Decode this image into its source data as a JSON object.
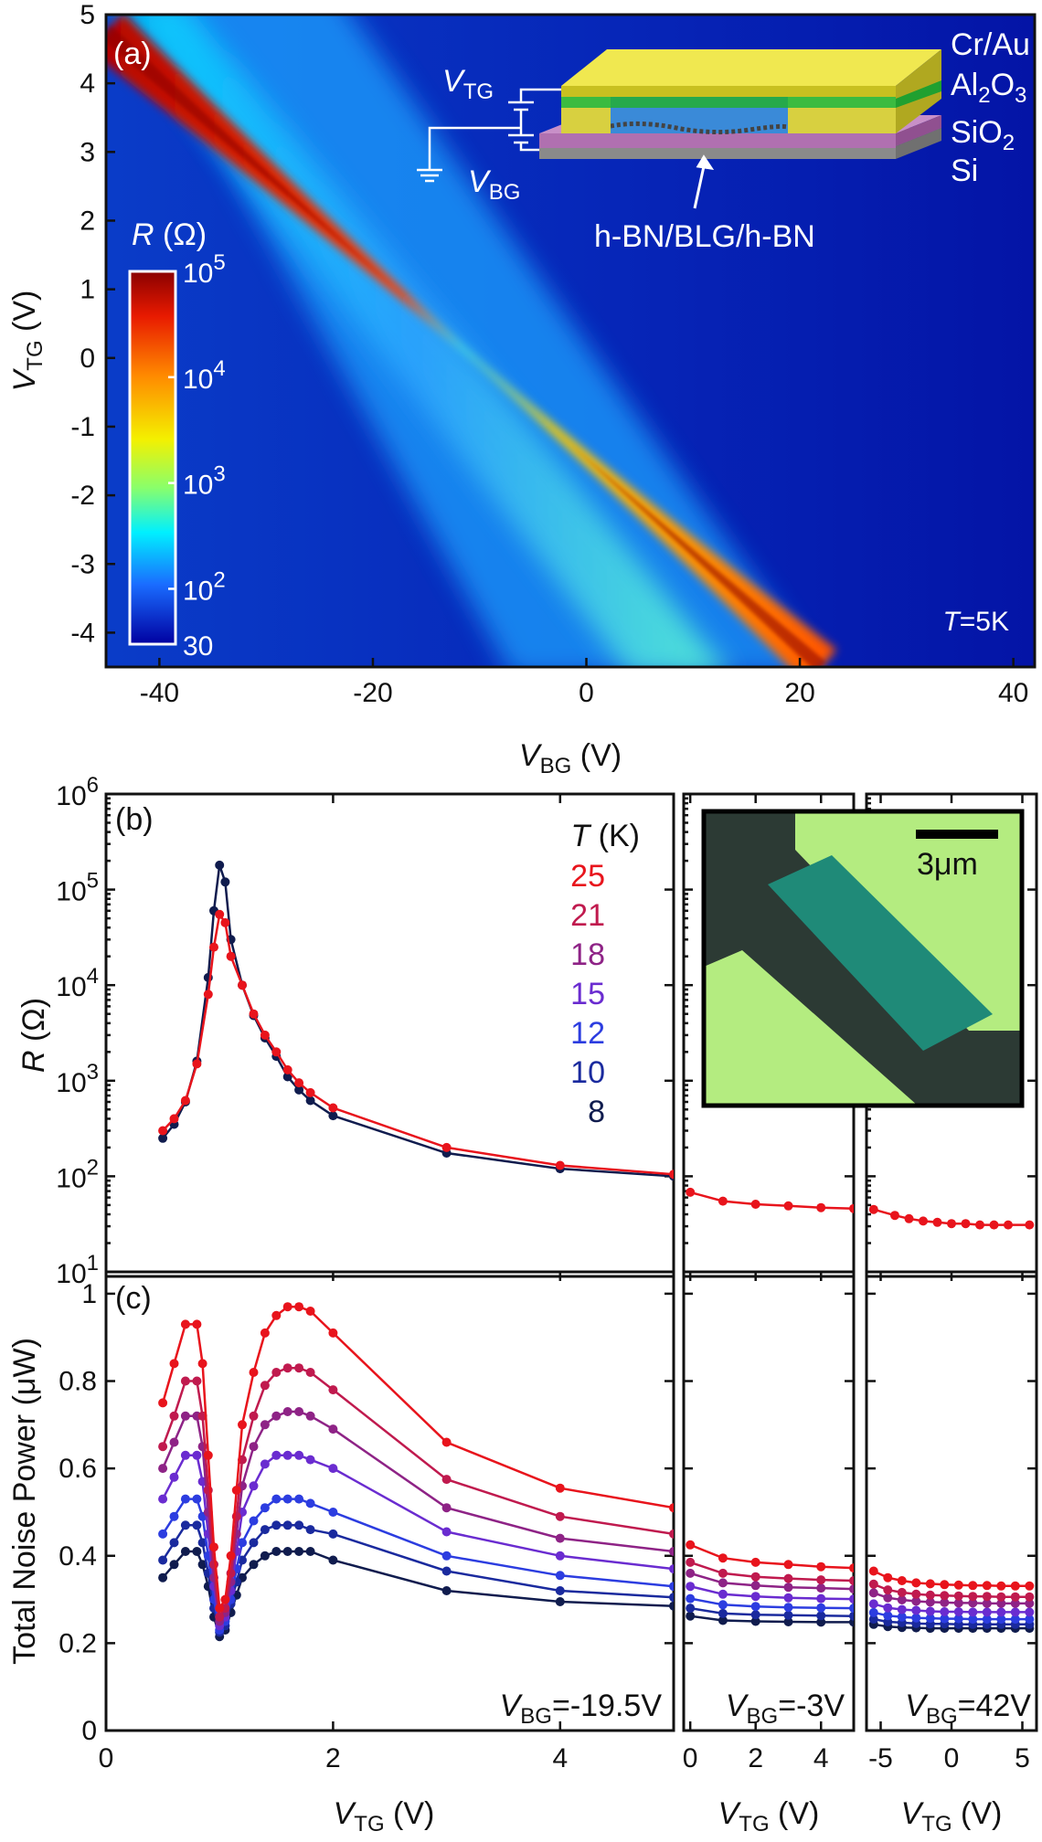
{
  "chart_data": [
    {
      "panel": "(a)",
      "type": "heatmap",
      "xlabel": "V_BG (V)",
      "ylabel": "V_TG (V)",
      "xlim": [
        -45,
        42
      ],
      "ylim": [
        -4.5,
        5
      ],
      "xticks": [
        -40,
        -20,
        0,
        20,
        40
      ],
      "yticks": [
        -4,
        -3,
        -2,
        -1,
        0,
        1,
        2,
        3,
        4,
        5
      ],
      "ridge_line": {
        "x": [
          -45,
          22
        ],
        "y": [
          4.75,
          -4.5
        ]
      },
      "colorbar": {
        "title": "R (Ω)",
        "scale": "log",
        "range": [
          30,
          100000
        ],
        "tick_labels": [
          "10^5",
          "10^4",
          "10^3",
          "10^2",
          "30"
        ],
        "tick_values": [
          100000,
          10000,
          1000,
          100,
          30
        ]
      },
      "annotations": [
        "T=5K"
      ],
      "inset_labels": [
        "V_TG",
        "V_BG",
        "Cr/Au",
        "Al2O3",
        "SiO2",
        "Si",
        "h-BN/BLG/h-BN"
      ]
    },
    {
      "panel": "(b)",
      "type": "line",
      "ylabel": "R (Ω)",
      "yscale": "log",
      "ylim": [
        10,
        1000000
      ],
      "yticks": [
        10,
        100,
        1000,
        10000,
        100000,
        1000000
      ],
      "legend_title": "T (K)",
      "temperatures": [
        25,
        21,
        18,
        15,
        12,
        10,
        8
      ],
      "subpanels": [
        {
          "vbg": "V_BG=-19.5V",
          "xlim": [
            0,
            5
          ],
          "x": [
            0.5,
            0.6,
            0.7,
            0.8,
            0.9,
            0.95,
            1.0,
            1.05,
            1.1,
            1.2,
            1.3,
            1.4,
            1.5,
            1.6,
            1.7,
            1.8,
            2.0,
            3.0,
            4.0,
            5.0
          ],
          "series": [
            {
              "T": 25,
              "values": [
                300,
                400,
                620,
                1500,
                8000,
                25000,
                55000,
                45000,
                20000,
                10000,
                5000,
                3000,
                2000,
                1300,
                950,
                750,
                520,
                200,
                130,
                105
              ]
            },
            {
              "T": 8,
              "values": [
                250,
                350,
                600,
                1600,
                12000,
                60000,
                180000,
                120000,
                30000,
                10000,
                4800,
                2800,
                1800,
                1100,
                800,
                620,
                430,
                175,
                120,
                100
              ]
            }
          ]
        },
        {
          "vbg": "V_BG=-3V",
          "xlim": [
            -0.2,
            5
          ],
          "x": [
            0,
            1,
            2,
            3,
            4,
            5
          ],
          "series": [
            {
              "T": 25,
              "values": [
                68,
                55,
                51,
                49,
                47,
                46
              ]
            }
          ]
        },
        {
          "vbg": "V_BG=42V",
          "xlim": [
            -6,
            6
          ],
          "x": [
            -5.5,
            -4,
            -3,
            -2,
            -1,
            0,
            1,
            2,
            3,
            4,
            5.5
          ],
          "series": [
            {
              "T": 25,
              "values": [
                45,
                39,
                36,
                34,
                33,
                32,
                32,
                31,
                31,
                31,
                31
              ]
            }
          ]
        }
      ],
      "inset": {
        "scale_bar": "3μm"
      }
    },
    {
      "panel": "(c)",
      "type": "line",
      "ylabel": "Total Noise Power (μW)",
      "ylim": [
        0,
        1.05
      ],
      "yticks": [
        0,
        0.2,
        0.4,
        0.6,
        0.8,
        1
      ],
      "xlabel": "V_TG (V)",
      "subpanels": [
        {
          "vbg_label": "V_BG=-19.5V",
          "xlim": [
            0,
            5
          ],
          "xticks": [
            0,
            2,
            4
          ],
          "x": [
            0.5,
            0.6,
            0.7,
            0.8,
            0.85,
            0.9,
            0.95,
            1.0,
            1.05,
            1.1,
            1.15,
            1.2,
            1.3,
            1.4,
            1.5,
            1.6,
            1.7,
            1.8,
            2.0,
            3.0,
            4.0,
            5.0
          ],
          "series": [
            {
              "T": 25,
              "values": [
                0.75,
                0.84,
                0.93,
                0.93,
                0.84,
                0.63,
                0.42,
                0.28,
                0.3,
                0.4,
                0.55,
                0.7,
                0.82,
                0.91,
                0.95,
                0.97,
                0.97,
                0.96,
                0.91,
                0.66,
                0.555,
                0.51
              ]
            },
            {
              "T": 21,
              "values": [
                0.65,
                0.72,
                0.8,
                0.8,
                0.72,
                0.55,
                0.38,
                0.26,
                0.28,
                0.36,
                0.49,
                0.62,
                0.72,
                0.79,
                0.82,
                0.83,
                0.83,
                0.82,
                0.78,
                0.575,
                0.49,
                0.45
              ]
            },
            {
              "T": 18,
              "values": [
                0.6,
                0.66,
                0.72,
                0.72,
                0.65,
                0.5,
                0.35,
                0.25,
                0.27,
                0.34,
                0.45,
                0.56,
                0.65,
                0.7,
                0.72,
                0.73,
                0.73,
                0.72,
                0.69,
                0.51,
                0.44,
                0.41
              ]
            },
            {
              "T": 15,
              "values": [
                0.53,
                0.58,
                0.63,
                0.63,
                0.57,
                0.45,
                0.33,
                0.24,
                0.26,
                0.32,
                0.41,
                0.5,
                0.56,
                0.61,
                0.63,
                0.63,
                0.63,
                0.62,
                0.6,
                0.455,
                0.4,
                0.37
              ]
            },
            {
              "T": 12,
              "values": [
                0.45,
                0.49,
                0.53,
                0.53,
                0.49,
                0.4,
                0.3,
                0.23,
                0.25,
                0.3,
                0.37,
                0.43,
                0.48,
                0.51,
                0.53,
                0.53,
                0.53,
                0.52,
                0.5,
                0.4,
                0.355,
                0.33
              ]
            },
            {
              "T": 10,
              "values": [
                0.39,
                0.43,
                0.47,
                0.47,
                0.43,
                0.36,
                0.28,
                0.225,
                0.24,
                0.29,
                0.34,
                0.39,
                0.43,
                0.46,
                0.47,
                0.47,
                0.47,
                0.46,
                0.45,
                0.365,
                0.32,
                0.305
              ]
            },
            {
              "T": 8,
              "values": [
                0.35,
                0.38,
                0.41,
                0.41,
                0.38,
                0.33,
                0.26,
                0.215,
                0.23,
                0.27,
                0.31,
                0.35,
                0.38,
                0.4,
                0.41,
                0.41,
                0.41,
                0.41,
                0.39,
                0.32,
                0.295,
                0.285
              ]
            }
          ]
        },
        {
          "vbg_label": "V_BG=-3V",
          "xlim": [
            -0.2,
            5
          ],
          "xticks": [
            0,
            2,
            4
          ],
          "x": [
            0,
            1,
            2,
            3,
            4,
            5
          ],
          "series": [
            {
              "T": 25,
              "values": [
                0.425,
                0.395,
                0.385,
                0.38,
                0.375,
                0.372
              ]
            },
            {
              "T": 21,
              "values": [
                0.385,
                0.36,
                0.352,
                0.348,
                0.345,
                0.343
              ]
            },
            {
              "T": 18,
              "values": [
                0.36,
                0.338,
                0.332,
                0.328,
                0.326,
                0.324
              ]
            },
            {
              "T": 15,
              "values": [
                0.33,
                0.312,
                0.307,
                0.304,
                0.302,
                0.301
              ]
            },
            {
              "T": 12,
              "values": [
                0.302,
                0.288,
                0.284,
                0.282,
                0.281,
                0.28
              ]
            },
            {
              "T": 10,
              "values": [
                0.28,
                0.268,
                0.265,
                0.264,
                0.263,
                0.262
              ]
            },
            {
              "T": 8,
              "values": [
                0.262,
                0.252,
                0.25,
                0.249,
                0.248,
                0.248
              ]
            }
          ]
        },
        {
          "vbg_label": "V_BG=42V",
          "xlim": [
            -6,
            6
          ],
          "xticks": [
            -5,
            0,
            5
          ],
          "x": [
            -5.5,
            -4.5,
            -3.5,
            -2.5,
            -1.5,
            -0.5,
            0.5,
            1.5,
            2.5,
            3.5,
            4.5,
            5.5
          ],
          "series": [
            {
              "T": 25,
              "values": [
                0.365,
                0.35,
                0.343,
                0.338,
                0.336,
                0.334,
                0.333,
                0.332,
                0.332,
                0.331,
                0.331,
                0.331
              ]
            },
            {
              "T": 21,
              "values": [
                0.335,
                0.322,
                0.316,
                0.312,
                0.31,
                0.309,
                0.308,
                0.307,
                0.307,
                0.306,
                0.306,
                0.306
              ]
            },
            {
              "T": 18,
              "values": [
                0.315,
                0.304,
                0.299,
                0.296,
                0.294,
                0.293,
                0.292,
                0.292,
                0.291,
                0.291,
                0.291,
                0.291
              ]
            },
            {
              "T": 15,
              "values": [
                0.29,
                0.281,
                0.277,
                0.275,
                0.273,
                0.272,
                0.272,
                0.271,
                0.271,
                0.271,
                0.271,
                0.271
              ]
            },
            {
              "T": 12,
              "values": [
                0.27,
                0.263,
                0.26,
                0.258,
                0.257,
                0.256,
                0.256,
                0.255,
                0.255,
                0.255,
                0.255,
                0.255
              ]
            },
            {
              "T": 10,
              "values": [
                0.255,
                0.249,
                0.247,
                0.245,
                0.244,
                0.244,
                0.243,
                0.243,
                0.243,
                0.243,
                0.243,
                0.243
              ]
            },
            {
              "T": 8,
              "values": [
                0.243,
                0.238,
                0.236,
                0.235,
                0.234,
                0.234,
                0.234,
                0.234,
                0.234,
                0.234,
                0.234,
                0.234
              ]
            }
          ]
        }
      ]
    }
  ],
  "labels": {
    "a_panel": "(a)",
    "a_T": "T",
    "a_T_val": "=5K",
    "a_xlabel_v": "V",
    "a_xlabel_sub": "BG",
    "a_xlabel_unit": " (V)",
    "a_ylabel_v": "V",
    "a_ylabel_sub": "TG",
    "a_ylabel_unit": " (V)",
    "cb_R": "R",
    "cb_unit": " (Ω)",
    "cb_ticks": [
      "10",
      "10",
      "10",
      "10",
      "30"
    ],
    "cb_exps": [
      "5",
      "4",
      "3",
      "2",
      ""
    ],
    "inset_vtg_v": "V",
    "inset_vtg_sub": "TG",
    "inset_vbg_v": "V",
    "inset_vbg_sub": "BG",
    "inset_crau": "Cr/Au",
    "inset_al_a": "Al",
    "inset_al_2": "2",
    "inset_al_b": "O",
    "inset_al_3": "3",
    "inset_sio": "SiO",
    "inset_sio_2": "2",
    "inset_si": "Si",
    "inset_stack": "h-BN/BLG/h-BN",
    "b_panel": "(b)",
    "b_ylabel_r": "R",
    "b_ylabel_unit": " (Ω)",
    "b_legend_T": "T",
    "b_legend_unit": " (K)",
    "b_scale": "3μm",
    "c_panel": "(c)",
    "c_ylabel": "Total Noise Power (μW)",
    "vbg1_v": "V",
    "vbg1_sub": "BG",
    "vbg1_val": "=-19.5V",
    "vbg2_v": "V",
    "vbg2_sub": "BG",
    "vbg2_val": "=-3V",
    "vbg3_v": "V",
    "vbg3_sub": "BG",
    "vbg3_val": "=42V",
    "xlab_v": "V",
    "xlab_sub": "TG",
    "xlab_unit": " (V)"
  },
  "colors": {
    "25": "#e8141c",
    "21": "#c01a4e",
    "18": "#8e2386",
    "15": "#6a2cd0",
    "12": "#2c3de0",
    "10": "#1a2a9e",
    "8": "#101c4e"
  }
}
